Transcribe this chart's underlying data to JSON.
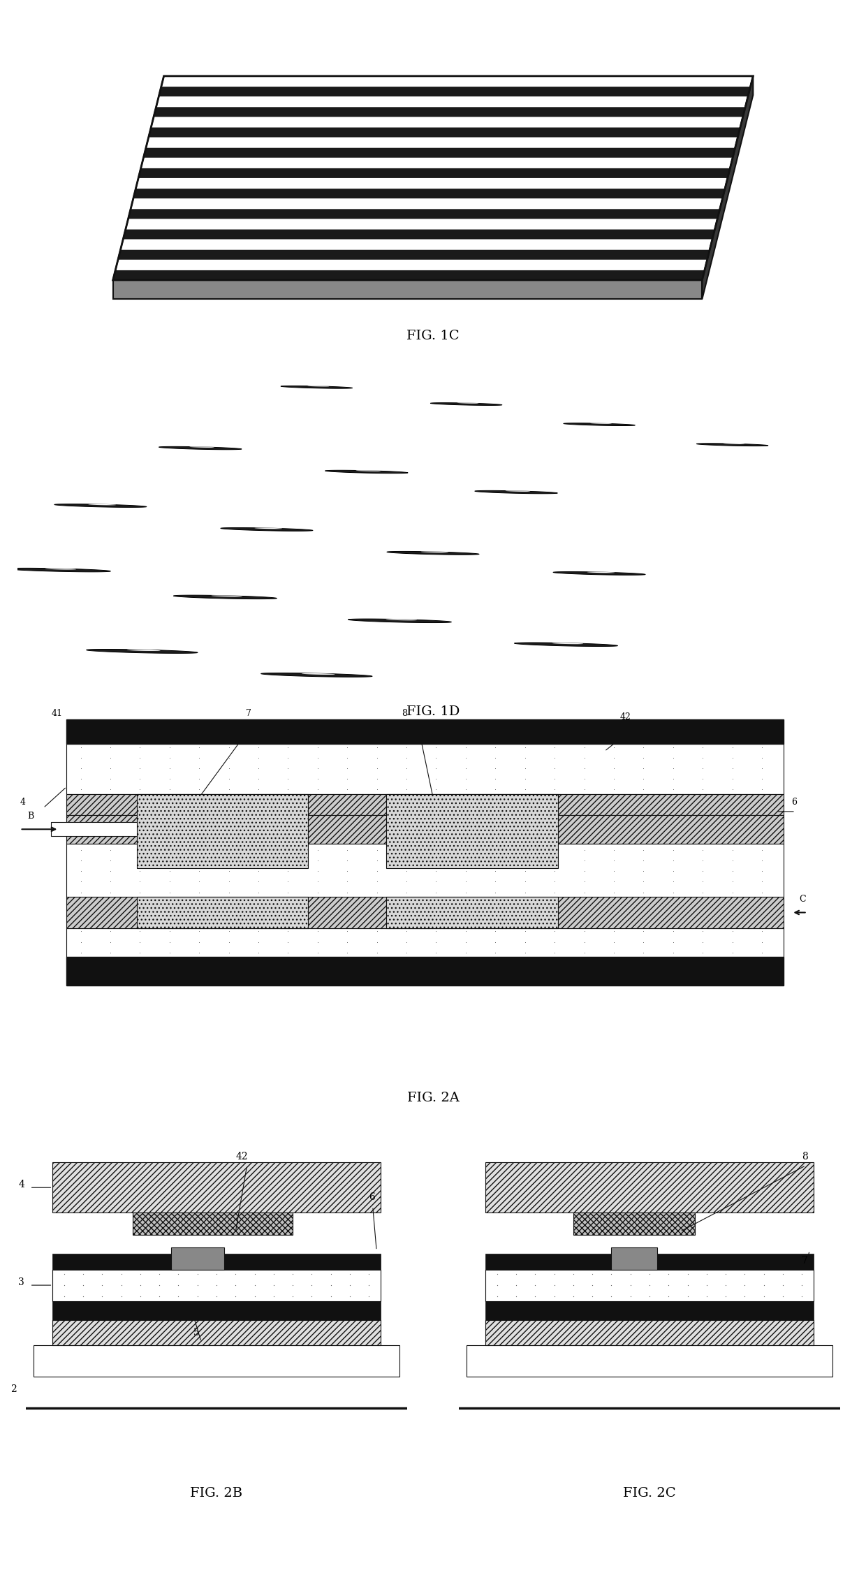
{
  "background": "#ffffff",
  "lc": "#111111",
  "fig1c_label": "FIG. 1C",
  "fig1d_label": "FIG. 1D",
  "fig2a_label": "FIG. 2A",
  "fig2b_label": "FIG. 2B",
  "fig2c_label": "FIG. 2C",
  "label_fontsize": 14,
  "annot_fontsize": 11,
  "n_stripes_1c": 10,
  "lens_pieces": [
    [
      0.36,
      0.88,
      0.045,
      0.018,
      -18
    ],
    [
      0.54,
      0.83,
      0.045,
      0.018,
      -18
    ],
    [
      0.7,
      0.77,
      0.045,
      0.018,
      -18
    ],
    [
      0.86,
      0.71,
      0.045,
      0.018,
      -18
    ],
    [
      0.22,
      0.7,
      0.052,
      0.021,
      -18
    ],
    [
      0.42,
      0.63,
      0.052,
      0.021,
      -18
    ],
    [
      0.6,
      0.57,
      0.052,
      0.021,
      -18
    ],
    [
      0.1,
      0.53,
      0.058,
      0.023,
      -18
    ],
    [
      0.3,
      0.46,
      0.058,
      0.023,
      -18
    ],
    [
      0.5,
      0.39,
      0.058,
      0.023,
      -18
    ],
    [
      0.7,
      0.33,
      0.058,
      0.023,
      -18
    ],
    [
      0.05,
      0.34,
      0.065,
      0.026,
      -18
    ],
    [
      0.25,
      0.26,
      0.065,
      0.026,
      -18
    ],
    [
      0.46,
      0.19,
      0.065,
      0.026,
      -18
    ],
    [
      0.66,
      0.12,
      0.065,
      0.026,
      -18
    ],
    [
      0.15,
      0.1,
      0.07,
      0.028,
      -18
    ],
    [
      0.36,
      0.03,
      0.07,
      0.028,
      -18
    ]
  ]
}
